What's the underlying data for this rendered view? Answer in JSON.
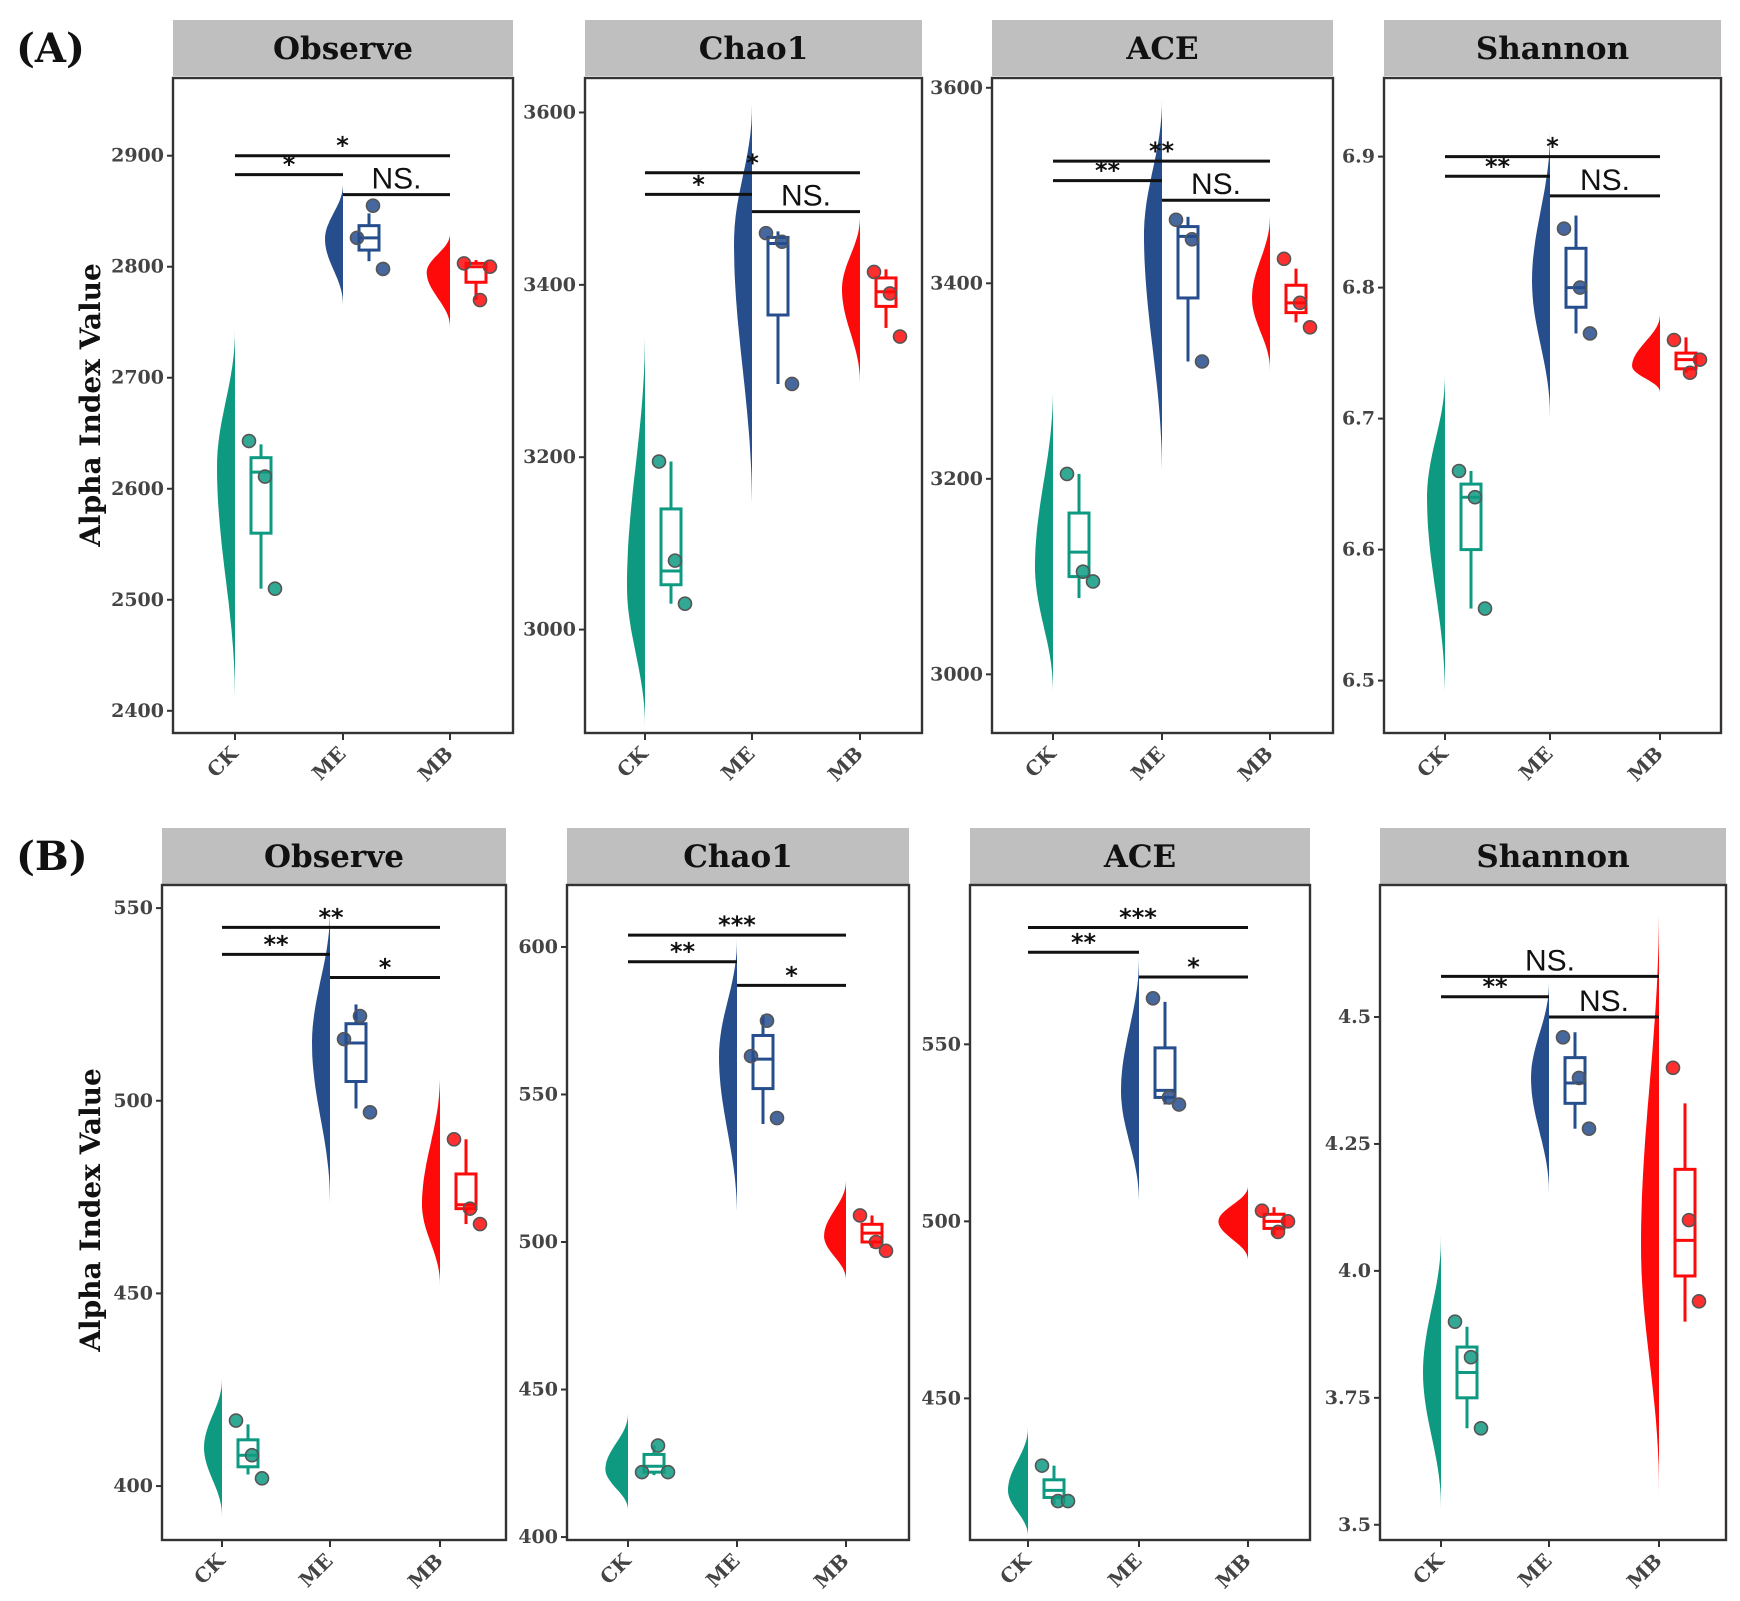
{
  "figure": {
    "panel_labels": [
      "(A)",
      "(B)"
    ],
    "ylabel": "Alpha Index Value",
    "colors": {
      "CK": "#0e9a81",
      "ME": "#264e8d",
      "MB": "#ff0a0a",
      "strip": "#bfbfbf"
    }
  },
  "chart_data": [
    {
      "type": "raincloud",
      "row": "A",
      "title": "Observe",
      "categories": [
        "CK",
        "ME",
        "MB"
      ],
      "ylim": [
        2380,
        2970
      ],
      "yticks": [
        2400,
        2500,
        2600,
        2700,
        2800,
        2900
      ],
      "series": [
        {
          "name": "CK",
          "points": [
            2643,
            2611,
            2510
          ],
          "box": {
            "min": 2510,
            "q1": 2560,
            "median": 2615,
            "q3": 2628,
            "max": 2640
          },
          "density": {
            "min": 2405,
            "max": 2745,
            "mode": 2620
          }
        },
        {
          "name": "ME",
          "points": [
            2826,
            2855,
            2798
          ],
          "box": {
            "min": 2805,
            "q1": 2815,
            "median": 2826,
            "q3": 2837,
            "max": 2848
          },
          "density": {
            "min": 2765,
            "max": 2875,
            "mode": 2825
          }
        },
        {
          "name": "MB",
          "points": [
            2803,
            2770,
            2800
          ],
          "box": {
            "min": 2770,
            "q1": 2786,
            "median": 2800,
            "q3": 2803,
            "max": 2806
          },
          "density": {
            "min": 2745,
            "max": 2830,
            "mode": 2795
          }
        }
      ],
      "comparisons": [
        {
          "from": "CK",
          "to": "ME",
          "label": "*",
          "y": 2883
        },
        {
          "from": "ME",
          "to": "MB",
          "label": "NS.",
          "y": 2865
        },
        {
          "from": "CK",
          "to": "MB",
          "label": "*",
          "y": 2900
        }
      ]
    },
    {
      "type": "raincloud",
      "row": "A",
      "title": "Chao1",
      "categories": [
        "CK",
        "ME",
        "MB"
      ],
      "ylim": [
        2880,
        3640
      ],
      "yticks": [
        3000,
        3200,
        3400,
        3600
      ],
      "series": [
        {
          "name": "CK",
          "points": [
            3195,
            3080,
            3030
          ],
          "box": {
            "min": 3030,
            "q1": 3052,
            "median": 3068,
            "q3": 3140,
            "max": 3195
          },
          "density": {
            "min": 2885,
            "max": 3350,
            "mode": 3050
          }
        },
        {
          "name": "ME",
          "points": [
            3460,
            3450,
            3285
          ],
          "box": {
            "min": 3285,
            "q1": 3365,
            "median": 3448,
            "q3": 3455,
            "max": 3462
          },
          "density": {
            "min": 3135,
            "max": 3610,
            "mode": 3450
          }
        },
        {
          "name": "MB",
          "points": [
            3415,
            3390,
            3340
          ],
          "box": {
            "min": 3350,
            "q1": 3375,
            "median": 3392,
            "q3": 3408,
            "max": 3418
          },
          "density": {
            "min": 3285,
            "max": 3480,
            "mode": 3395
          }
        }
      ],
      "comparisons": [
        {
          "from": "CK",
          "to": "ME",
          "label": "*",
          "y": 3505
        },
        {
          "from": "ME",
          "to": "MB",
          "label": "NS.",
          "y": 3485
        },
        {
          "from": "CK",
          "to": "MB",
          "label": "*",
          "y": 3530
        }
      ]
    },
    {
      "type": "raincloud",
      "row": "A",
      "title": "ACE",
      "categories": [
        "CK",
        "ME",
        "MB"
      ],
      "ylim": [
        2940,
        3610
      ],
      "yticks": [
        3000,
        3200,
        3400,
        3600
      ],
      "series": [
        {
          "name": "CK",
          "points": [
            3205,
            3105,
            3095
          ],
          "box": {
            "min": 3078,
            "q1": 3100,
            "median": 3125,
            "q3": 3165,
            "max": 3205
          },
          "density": {
            "min": 2980,
            "max": 3295,
            "mode": 3110
          }
        },
        {
          "name": "ME",
          "points": [
            3465,
            3445,
            3320
          ],
          "box": {
            "min": 3320,
            "q1": 3385,
            "median": 3448,
            "q3": 3458,
            "max": 3468
          },
          "density": {
            "min": 3200,
            "max": 3590,
            "mode": 3450
          }
        },
        {
          "name": "MB",
          "points": [
            3425,
            3380,
            3355
          ],
          "box": {
            "min": 3360,
            "q1": 3370,
            "median": 3380,
            "q3": 3398,
            "max": 3415
          },
          "density": {
            "min": 3310,
            "max": 3470,
            "mode": 3385
          }
        }
      ],
      "comparisons": [
        {
          "from": "CK",
          "to": "ME",
          "label": "**",
          "y": 3505
        },
        {
          "from": "ME",
          "to": "MB",
          "label": "NS.",
          "y": 3485
        },
        {
          "from": "CK",
          "to": "MB",
          "label": "**",
          "y": 3525
        }
      ]
    },
    {
      "type": "raincloud",
      "row": "A",
      "title": "Shannon",
      "categories": [
        "CK",
        "ME",
        "MB"
      ],
      "ylim": [
        6.46,
        6.96
      ],
      "yticks": [
        6.5,
        6.6,
        6.7,
        6.8,
        6.9
      ],
      "series": [
        {
          "name": "CK",
          "points": [
            6.66,
            6.64,
            6.555
          ],
          "box": {
            "min": 6.555,
            "q1": 6.6,
            "median": 6.64,
            "q3": 6.65,
            "max": 6.66
          },
          "density": {
            "min": 6.485,
            "max": 6.735,
            "mode": 6.64
          }
        },
        {
          "name": "ME",
          "points": [
            6.845,
            6.8,
            6.765
          ],
          "box": {
            "min": 6.765,
            "q1": 6.785,
            "median": 6.8,
            "q3": 6.83,
            "max": 6.855
          },
          "density": {
            "min": 6.7,
            "max": 6.92,
            "mode": 6.805
          }
        },
        {
          "name": "MB",
          "points": [
            6.76,
            6.735,
            6.745
          ],
          "box": {
            "min": 6.735,
            "q1": 6.738,
            "median": 6.745,
            "q3": 6.75,
            "max": 6.762
          },
          "density": {
            "min": 6.72,
            "max": 6.78,
            "mode": 6.74
          }
        }
      ],
      "comparisons": [
        {
          "from": "CK",
          "to": "ME",
          "label": "**",
          "y": 6.885
        },
        {
          "from": "ME",
          "to": "MB",
          "label": "NS.",
          "y": 6.87
        },
        {
          "from": "CK",
          "to": "MB",
          "label": "*",
          "y": 6.9
        }
      ]
    },
    {
      "type": "raincloud",
      "row": "B",
      "title": "Observe",
      "categories": [
        "CK",
        "ME",
        "MB"
      ],
      "ylim": [
        386,
        556
      ],
      "yticks": [
        400,
        450,
        500,
        550
      ],
      "series": [
        {
          "name": "CK",
          "points": [
            417,
            408,
            402
          ],
          "box": {
            "min": 403,
            "q1": 405,
            "median": 408,
            "q3": 412,
            "max": 416
          },
          "density": {
            "min": 392,
            "max": 428,
            "mode": 410
          }
        },
        {
          "name": "ME",
          "points": [
            516,
            522,
            497
          ],
          "box": {
            "min": 498,
            "q1": 505,
            "median": 515,
            "q3": 520,
            "max": 525
          },
          "density": {
            "min": 473,
            "max": 550,
            "mode": 515
          }
        },
        {
          "name": "MB",
          "points": [
            490,
            472,
            468
          ],
          "box": {
            "min": 468,
            "q1": 472,
            "median": 473,
            "q3": 481,
            "max": 490
          },
          "density": {
            "min": 452,
            "max": 507,
            "mode": 473
          }
        }
      ],
      "comparisons": [
        {
          "from": "CK",
          "to": "ME",
          "label": "**",
          "y": 538
        },
        {
          "from": "ME",
          "to": "MB",
          "label": "*",
          "y": 532
        },
        {
          "from": "CK",
          "to": "MB",
          "label": "**",
          "y": 545
        }
      ]
    },
    {
      "type": "raincloud",
      "row": "B",
      "title": "Chao1",
      "categories": [
        "CK",
        "ME",
        "MB"
      ],
      "ylim": [
        399,
        621
      ],
      "yticks": [
        400,
        450,
        500,
        550,
        600
      ],
      "series": [
        {
          "name": "CK",
          "points": [
            422,
            431,
            422
          ],
          "box": {
            "min": 421,
            "q1": 422,
            "median": 424,
            "q3": 428,
            "max": 431
          },
          "density": {
            "min": 409,
            "max": 442,
            "mode": 423
          }
        },
        {
          "name": "ME",
          "points": [
            563,
            575,
            542
          ],
          "box": {
            "min": 540,
            "q1": 552,
            "median": 562,
            "q3": 570,
            "max": 577
          },
          "density": {
            "min": 508,
            "max": 603,
            "mode": 563
          }
        },
        {
          "name": "MB",
          "points": [
            509,
            500,
            497
          ],
          "box": {
            "min": 498,
            "q1": 500,
            "median": 503,
            "q3": 506,
            "max": 509
          },
          "density": {
            "min": 487,
            "max": 521,
            "mode": 502
          }
        }
      ],
      "comparisons": [
        {
          "from": "CK",
          "to": "ME",
          "label": "**",
          "y": 595
        },
        {
          "from": "ME",
          "to": "MB",
          "label": "*",
          "y": 587
        },
        {
          "from": "CK",
          "to": "MB",
          "label": "***",
          "y": 604
        }
      ]
    },
    {
      "type": "raincloud",
      "row": "B",
      "title": "ACE",
      "categories": [
        "CK",
        "ME",
        "MB"
      ],
      "ylim": [
        410,
        595
      ],
      "yticks": [
        450,
        500,
        550
      ],
      "series": [
        {
          "name": "CK",
          "points": [
            431,
            421,
            421
          ],
          "box": {
            "min": 420,
            "q1": 422,
            "median": 424,
            "q3": 427,
            "max": 431
          },
          "density": {
            "min": 411,
            "max": 442,
            "mode": 424
          }
        },
        {
          "name": "ME",
          "points": [
            563,
            535,
            533
          ],
          "box": {
            "min": 533,
            "q1": 535,
            "median": 537,
            "q3": 549,
            "max": 562
          },
          "density": {
            "min": 505,
            "max": 575,
            "mode": 537
          }
        },
        {
          "name": "MB",
          "points": [
            503,
            497,
            500
          ],
          "box": {
            "min": 496,
            "q1": 498,
            "median": 500,
            "q3": 502,
            "max": 504
          },
          "density": {
            "min": 489,
            "max": 510,
            "mode": 500
          }
        }
      ],
      "comparisons": [
        {
          "from": "CK",
          "to": "ME",
          "label": "**",
          "y": 576
        },
        {
          "from": "ME",
          "to": "MB",
          "label": "*",
          "y": 569
        },
        {
          "from": "CK",
          "to": "MB",
          "label": "***",
          "y": 583
        }
      ]
    },
    {
      "type": "raincloud",
      "row": "B",
      "title": "Shannon",
      "categories": [
        "CK",
        "ME",
        "MB"
      ],
      "ylim": [
        3.47,
        4.76
      ],
      "yticks": [
        3.5,
        3.75,
        4.0,
        4.25,
        4.5
      ],
      "series": [
        {
          "name": "CK",
          "points": [
            3.9,
            3.83,
            3.69
          ],
          "box": {
            "min": 3.69,
            "q1": 3.75,
            "median": 3.8,
            "q3": 3.85,
            "max": 3.89
          },
          "density": {
            "min": 3.53,
            "max": 4.07,
            "mode": 3.8
          }
        },
        {
          "name": "ME",
          "points": [
            4.46,
            4.38,
            4.28
          ],
          "box": {
            "min": 4.28,
            "q1": 4.33,
            "median": 4.37,
            "q3": 4.42,
            "max": 4.47
          },
          "density": {
            "min": 4.15,
            "max": 4.57,
            "mode": 4.38
          }
        },
        {
          "name": "MB",
          "points": [
            4.4,
            4.1,
            3.94
          ],
          "box": {
            "min": 3.9,
            "q1": 3.99,
            "median": 4.06,
            "q3": 4.2,
            "max": 4.33
          },
          "density": {
            "min": 3.56,
            "max": 4.73,
            "mode": 4.05
          }
        }
      ],
      "comparisons": [
        {
          "from": "CK",
          "to": "ME",
          "label": "**",
          "y": 4.54
        },
        {
          "from": "ME",
          "to": "MB",
          "label": "NS.",
          "y": 4.5
        },
        {
          "from": "CK",
          "to": "MB",
          "label": "NS.",
          "y": 4.58
        }
      ]
    }
  ]
}
